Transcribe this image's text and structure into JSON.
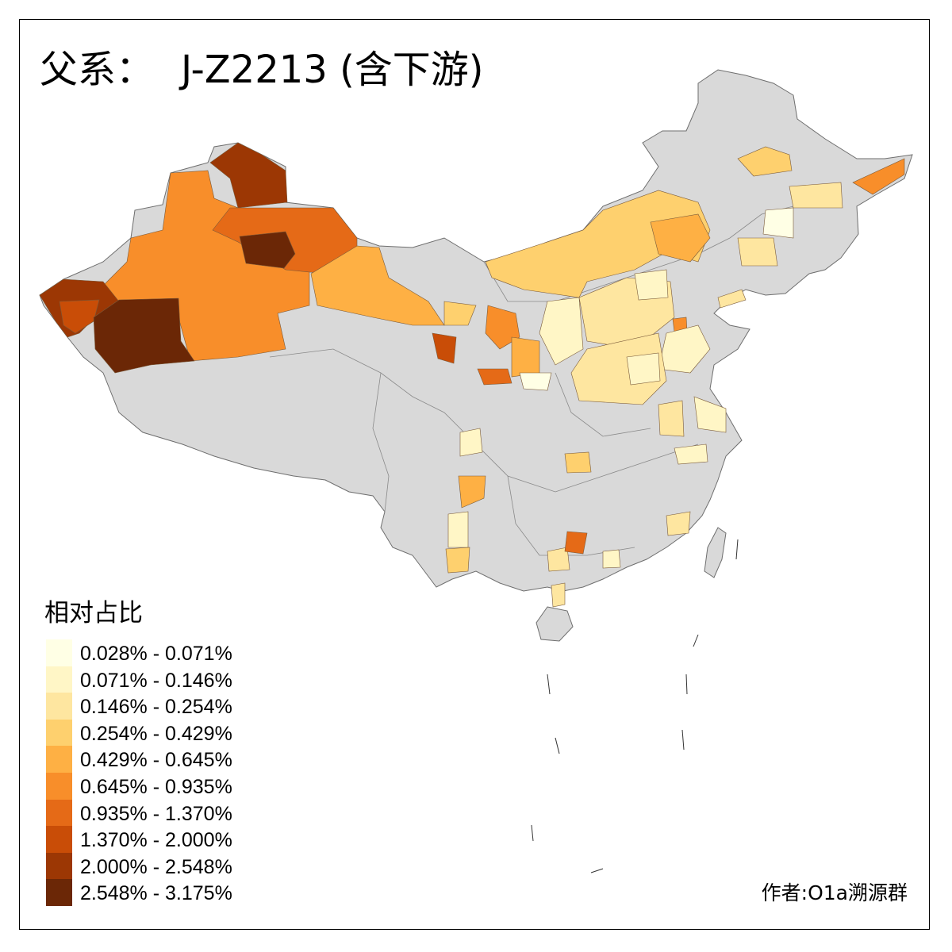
{
  "title": {
    "prefix": "父系：",
    "main": "J-Z2213 (含下游)"
  },
  "legend": {
    "title": "相对占比",
    "classes": [
      {
        "label": "0.028% - 0.071%",
        "color": "#FFFFE5"
      },
      {
        "label": "0.071% - 0.146%",
        "color": "#FFF6C6"
      },
      {
        "label": "0.146% - 0.254%",
        "color": "#FEE6A0"
      },
      {
        "label": "0.254% - 0.429%",
        "color": "#FED06E"
      },
      {
        "label": "0.429% - 0.645%",
        "color": "#FEB044"
      },
      {
        "label": "0.645% - 0.935%",
        "color": "#F88E2A"
      },
      {
        "label": "0.935% - 1.370%",
        "color": "#E56A17"
      },
      {
        "label": "1.370% - 2.000%",
        "color": "#C94D07"
      },
      {
        "label": "2.000% - 2.548%",
        "color": "#9C3704"
      },
      {
        "label": "2.548% - 3.175%",
        "color": "#6B2706"
      }
    ]
  },
  "no_data_color": "#D9D9D9",
  "credit": "作者:O1a溯源群"
}
